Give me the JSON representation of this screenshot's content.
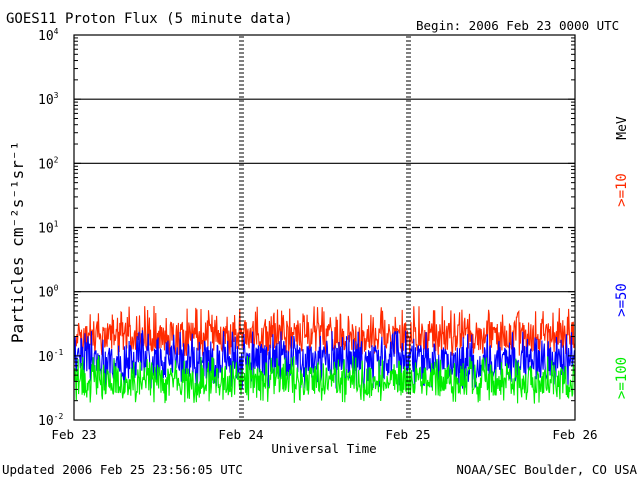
{
  "header": {
    "title": "GOES11 Proton Flux (5 minute data)",
    "begin": "Begin: 2006 Feb 23 0000 UTC"
  },
  "footer": {
    "updated": "Updated 2006 Feb 25 23:56:05 UTC",
    "credit": "NOAA/SEC Boulder, CO USA"
  },
  "chart_data": {
    "type": "line",
    "title": "GOES11 Proton Flux (5 minute data)",
    "xlabel": "Universal Time",
    "ylabel": "Particles cm⁻²s⁻¹sr⁻¹",
    "yscale": "log",
    "ylim": [
      0.01,
      10000
    ],
    "y_ticks": [
      {
        "base": "10",
        "exp": "-2"
      },
      {
        "base": "10",
        "exp": "-1"
      },
      {
        "base": "10",
        "exp": "0"
      },
      {
        "base": "10",
        "exp": "1"
      },
      {
        "base": "10",
        "exp": "2"
      },
      {
        "base": "10",
        "exp": "3"
      },
      {
        "base": "10",
        "exp": "4"
      }
    ],
    "x_ticks": [
      "Feb 23",
      "Feb 24",
      "Feb 25",
      "Feb 26"
    ],
    "xlim": [
      "2006-02-23 00:00",
      "2006-02-26 00:00"
    ],
    "threshold_lines": [
      {
        "value": 1,
        "style": "solid"
      },
      {
        "value": 10,
        "style": "dashed"
      },
      {
        "value": 100,
        "style": "solid"
      },
      {
        "value": 1000,
        "style": "solid"
      }
    ],
    "unit_label": "MeV",
    "series": [
      {
        "name": ">=10",
        "color": "#ff2a00",
        "typical": 0.2,
        "min": 0.1,
        "max": 0.6
      },
      {
        "name": ">=50",
        "color": "#0000ff",
        "typical": 0.08,
        "min": 0.03,
        "max": 0.25
      },
      {
        "name": ">=100",
        "color": "#00ee00",
        "typical": 0.04,
        "min": 0.018,
        "max": 0.1
      }
    ]
  }
}
